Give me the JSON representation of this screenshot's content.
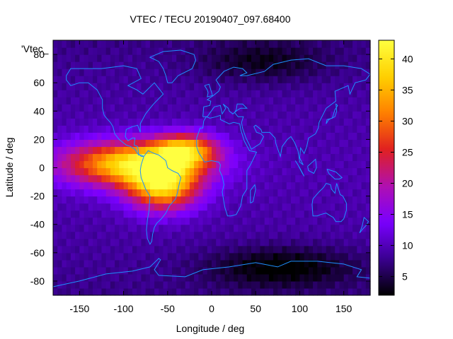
{
  "chart_data": {
    "type": "heatmap",
    "title": "VTEC / TECU 20190407_097.68400",
    "xlabel": "Longitude / deg",
    "ylabel": "Latitude / deg",
    "key_label": "'Vtec_",
    "xlim": [
      -180,
      180
    ],
    "ylim": [
      -90,
      90
    ],
    "x_ticks": [
      -150,
      -100,
      -50,
      0,
      50,
      100,
      150
    ],
    "y_ticks": [
      -80,
      -60,
      -40,
      -20,
      0,
      20,
      40,
      60,
      80
    ],
    "colorbar": {
      "range": [
        2,
        43
      ],
      "ticks": [
        5,
        10,
        15,
        20,
        25,
        30,
        35,
        40
      ],
      "palette": [
        "#000000",
        "#3a0090",
        "#7a00ff",
        "#b010b0",
        "#e02020",
        "#ff8000",
        "#ffd000",
        "#ffff40"
      ]
    },
    "grid": {
      "lon_step": 5,
      "lat_step": 5
    },
    "features": {
      "background_tec": 9,
      "peaks": [
        {
          "lon": -90,
          "lat": 3,
          "tec": 38,
          "sigma_lon": 55,
          "sigma_lat": 11
        },
        {
          "lon": -55,
          "lat": -13,
          "tec": 35,
          "sigma_lon": 28,
          "sigma_lat": 12
        },
        {
          "lon": -30,
          "lat": 13,
          "tec": 31,
          "sigma_lon": 25,
          "sigma_lat": 8
        }
      ],
      "troughs": [
        {
          "lon": 80,
          "lat": -70,
          "tec": 2,
          "sigma_lon": 60,
          "sigma_lat": 10
        },
        {
          "lon": 60,
          "lat": 75,
          "tec": 4,
          "sigma_lon": 50,
          "sigma_lat": 10
        }
      ]
    },
    "overlay": "coastlines",
    "overlay_color": "#1e90ff"
  }
}
